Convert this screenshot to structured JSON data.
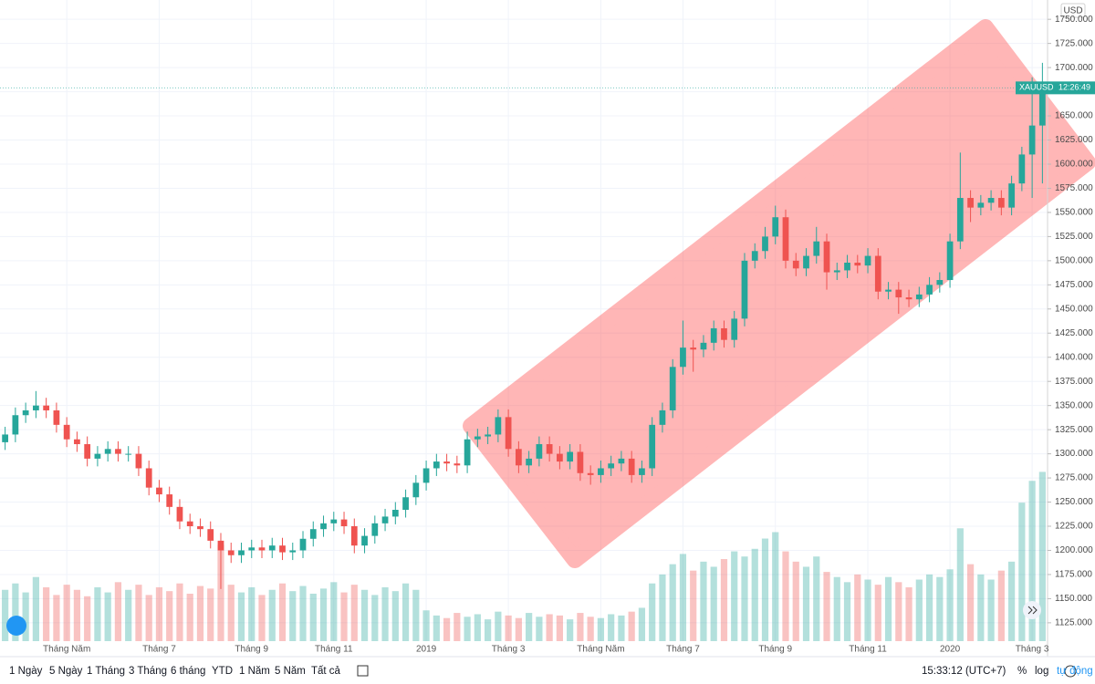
{
  "chart_data": {
    "type": "candlestick",
    "categories": [
      null,
      null,
      null,
      null,
      null,
      null,
      "Tháng Năm",
      null,
      null,
      null,
      null,
      null,
      null,
      null,
      null,
      "Tháng 7",
      null,
      null,
      null,
      null,
      null,
      null,
      null,
      null,
      "Tháng 9",
      null,
      null,
      null,
      null,
      null,
      null,
      null,
      "Tháng 11",
      null,
      null,
      null,
      null,
      null,
      null,
      null,
      null,
      "2019",
      null,
      null,
      null,
      null,
      null,
      null,
      null,
      "Tháng 3",
      null,
      null,
      null,
      null,
      null,
      null,
      null,
      null,
      "Tháng Năm",
      null,
      null,
      null,
      null,
      null,
      null,
      null,
      "Tháng 7",
      null,
      null,
      null,
      null,
      null,
      null,
      null,
      null,
      "Tháng 9",
      null,
      null,
      null,
      null,
      null,
      null,
      null,
      null,
      "Tháng 11",
      null,
      null,
      null,
      null,
      null,
      null,
      null,
      "2020",
      null,
      null,
      null,
      null,
      null,
      null,
      null,
      "Tháng 3",
      null
    ],
    "series": [
      {
        "name": "XAUUSD",
        "up_color": "#26a69a",
        "down_color": "#ef5350",
        "open": [
          1312,
          1320,
          1340,
          1345,
          1350,
          1345,
          1330,
          1315,
          1310,
          1295,
          1300,
          1305,
          1300,
          1300,
          1285,
          1265,
          1258,
          1245,
          1230,
          1225,
          1222,
          1210,
          1200,
          1195,
          1200,
          1203,
          1200,
          1205,
          1198,
          1200,
          1212,
          1222,
          1228,
          1232,
          1225,
          1205,
          1215,
          1228,
          1235,
          1242,
          1255,
          1270,
          1285,
          1292,
          1290,
          1288,
          1315,
          1318,
          1320,
          1338,
          1305,
          1288,
          1295,
          1310,
          1300,
          1292,
          1302,
          1280,
          1278,
          1285,
          1290,
          1295,
          1278,
          1285,
          1330,
          1345,
          1390,
          1410,
          1408,
          1415,
          1430,
          1418,
          1440,
          1500,
          1510,
          1525,
          1545,
          1500,
          1492,
          1505,
          1520,
          1488,
          1490,
          1498,
          1495,
          1505,
          1468,
          1470,
          1462,
          1460,
          1465,
          1475,
          1480,
          1520,
          1565,
          1555,
          1560,
          1565,
          1555,
          1580,
          1610,
          1640
        ],
        "high": [
          1328,
          1348,
          1353,
          1365,
          1358,
          1353,
          1338,
          1323,
          1318,
          1308,
          1313,
          1313,
          1308,
          1308,
          1293,
          1273,
          1266,
          1253,
          1238,
          1233,
          1230,
          1218,
          1208,
          1208,
          1211,
          1211,
          1213,
          1213,
          1208,
          1220,
          1230,
          1236,
          1240,
          1240,
          1233,
          1223,
          1236,
          1243,
          1250,
          1263,
          1278,
          1293,
          1300,
          1300,
          1298,
          1323,
          1326,
          1328,
          1346,
          1346,
          1313,
          1303,
          1318,
          1318,
          1308,
          1310,
          1310,
          1288,
          1293,
          1298,
          1303,
          1303,
          1293,
          1338,
          1353,
          1398,
          1438,
          1418,
          1423,
          1438,
          1438,
          1448,
          1508,
          1518,
          1535,
          1557,
          1553,
          1508,
          1513,
          1535,
          1528,
          1498,
          1506,
          1506,
          1513,
          1513,
          1478,
          1478,
          1470,
          1473,
          1483,
          1488,
          1528,
          1612,
          1573,
          1568,
          1573,
          1573,
          1588,
          1618,
          1690,
          1705
        ],
        "low": [
          1304,
          1312,
          1332,
          1337,
          1337,
          1322,
          1307,
          1302,
          1287,
          1287,
          1292,
          1292,
          1292,
          1277,
          1257,
          1250,
          1237,
          1222,
          1217,
          1214,
          1202,
          1160,
          1187,
          1187,
          1192,
          1192,
          1192,
          1190,
          1190,
          1192,
          1204,
          1214,
          1220,
          1217,
          1197,
          1197,
          1207,
          1220,
          1227,
          1234,
          1247,
          1262,
          1277,
          1282,
          1280,
          1280,
          1307,
          1310,
          1312,
          1297,
          1280,
          1280,
          1287,
          1292,
          1284,
          1284,
          1272,
          1268,
          1270,
          1277,
          1282,
          1270,
          1270,
          1277,
          1322,
          1337,
          1382,
          1385,
          1400,
          1407,
          1410,
          1410,
          1432,
          1492,
          1502,
          1517,
          1492,
          1484,
          1484,
          1497,
          1470,
          1480,
          1482,
          1487,
          1487,
          1460,
          1460,
          1445,
          1452,
          1452,
          1457,
          1467,
          1472,
          1512,
          1540,
          1547,
          1552,
          1547,
          1547,
          1572,
          1565,
          1580
        ],
        "close": [
          1320,
          1340,
          1345,
          1350,
          1345,
          1330,
          1315,
          1310,
          1295,
          1300,
          1305,
          1300,
          1300,
          1285,
          1265,
          1258,
          1245,
          1230,
          1225,
          1222,
          1210,
          1200,
          1195,
          1200,
          1203,
          1200,
          1205,
          1198,
          1200,
          1212,
          1222,
          1228,
          1232,
          1225,
          1205,
          1215,
          1228,
          1235,
          1242,
          1255,
          1270,
          1285,
          1292,
          1290,
          1288,
          1315,
          1318,
          1320,
          1338,
          1305,
          1288,
          1295,
          1310,
          1300,
          1292,
          1302,
          1280,
          1278,
          1285,
          1290,
          1295,
          1278,
          1285,
          1330,
          1345,
          1390,
          1410,
          1408,
          1415,
          1430,
          1418,
          1440,
          1500,
          1510,
          1525,
          1545,
          1500,
          1492,
          1505,
          1520,
          1488,
          1490,
          1498,
          1495,
          1505,
          1468,
          1470,
          1462,
          1460,
          1465,
          1475,
          1480,
          1520,
          1565,
          1555,
          1560,
          1565,
          1555,
          1580,
          1610,
          1640,
          1679
        ]
      },
      {
        "name": "Volume",
        "axis": "y2",
        "values": [
          40,
          45,
          38,
          50,
          42,
          36,
          44,
          40,
          35,
          42,
          38,
          46,
          40,
          44,
          36,
          42,
          39,
          45,
          37,
          43,
          41,
          75,
          44,
          38,
          42,
          36,
          40,
          45,
          39,
          43,
          37,
          41,
          46,
          38,
          44,
          40,
          36,
          42,
          39,
          45,
          40,
          24,
          20,
          18,
          22,
          19,
          21,
          17,
          23,
          20,
          18,
          22,
          19,
          21,
          20,
          17,
          22,
          19,
          18,
          21,
          20,
          23,
          26,
          45,
          52,
          60,
          68,
          55,
          62,
          58,
          64,
          70,
          66,
          72,
          80,
          85,
          70,
          62,
          58,
          66,
          54,
          50,
          46,
          52,
          48,
          44,
          50,
          46,
          42,
          48,
          52,
          50,
          56,
          88,
          60,
          52,
          48,
          55,
          62,
          108,
          125,
          132
        ]
      }
    ],
    "ylim": [
      1106,
      1770
    ],
    "y2lim": [
      0,
      500
    ],
    "yticks": [
      {
        "value": 1125,
        "label": "1125.000"
      },
      {
        "value": 1150,
        "label": "1150.000"
      },
      {
        "value": 1175,
        "label": "1175.000"
      },
      {
        "value": 1200,
        "label": "1200.000"
      },
      {
        "value": 1225,
        "label": "1225.000"
      },
      {
        "value": 1250,
        "label": "1250.000"
      },
      {
        "value": 1275,
        "label": "1275.000"
      },
      {
        "value": 1300,
        "label": "1300.000"
      },
      {
        "value": 1325,
        "label": "1325.000"
      },
      {
        "value": 1350,
        "label": "1350.000"
      },
      {
        "value": 1375,
        "label": "1375.000"
      },
      {
        "value": 1400,
        "label": "1400.000"
      },
      {
        "value": 1425,
        "label": "1425.000"
      },
      {
        "value": 1450,
        "label": "1450.000"
      },
      {
        "value": 1475,
        "label": "1475.000"
      },
      {
        "value": 1500,
        "label": "1500.000"
      },
      {
        "value": 1525,
        "label": "1525.000"
      },
      {
        "value": 1550,
        "label": "1550.000"
      },
      {
        "value": 1575,
        "label": "1575.000"
      },
      {
        "value": 1600,
        "label": "1600.000"
      },
      {
        "value": 1625,
        "label": "1625.000"
      },
      {
        "value": 1650,
        "label": "1650.000"
      },
      {
        "value": 1675,
        "label": "1675.000"
      },
      {
        "value": 1700,
        "label": "1700.000"
      },
      {
        "value": 1725,
        "label": "1725.000"
      },
      {
        "value": 1750,
        "label": "1750.000"
      }
    ],
    "currency": "USD",
    "countdown": "12:26:49",
    "grid": true
  },
  "toolbar": {
    "ranges": [
      "1 Ngày",
      "5 Ngày",
      "1 Tháng",
      "3 Tháng",
      "6 tháng",
      "YTD",
      "1 Năm",
      "5 Năm",
      "Tất cả"
    ],
    "clock": "15:33:12 (UTC+7)",
    "percent": "%",
    "log": "log",
    "auto": "tự động"
  }
}
